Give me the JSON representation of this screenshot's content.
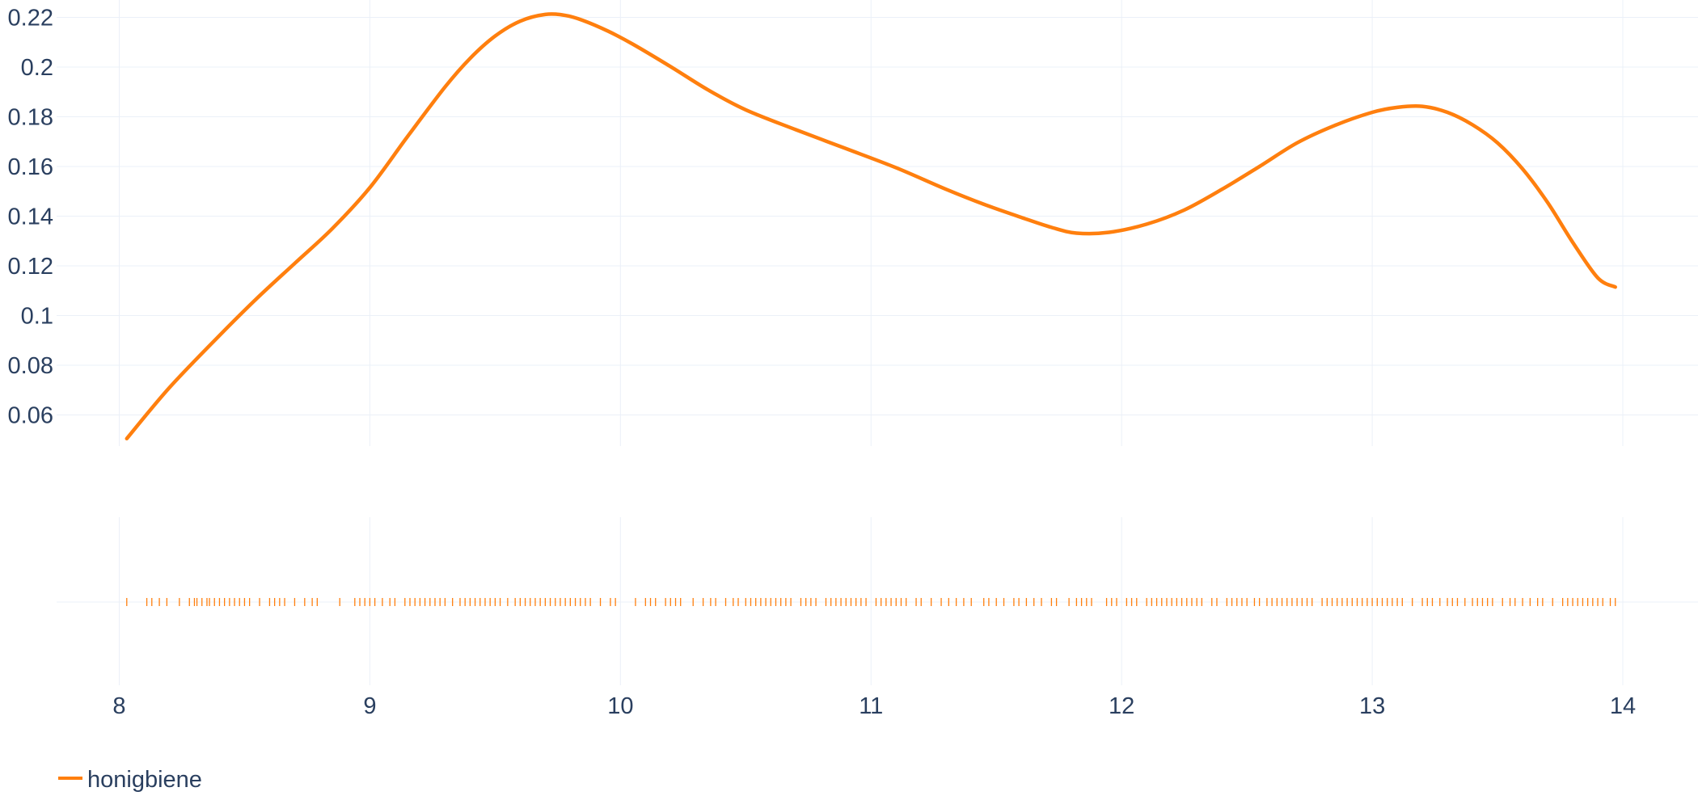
{
  "chart_data": {
    "type": "line",
    "subtype": "kde-distribution-with-rug",
    "title": "",
    "xlabel": "",
    "ylabel": "",
    "xlim": [
      7.75,
      14.3
    ],
    "ylim": [
      0.0475,
      0.227
    ],
    "x_ticks": [
      8,
      9,
      10,
      11,
      12,
      13,
      14
    ],
    "x_tick_labels": [
      "8",
      "9",
      "10",
      "11",
      "12",
      "13",
      "14"
    ],
    "y_ticks": [
      0.06,
      0.08,
      0.1,
      0.12,
      0.14,
      0.16,
      0.18,
      0.2,
      0.22
    ],
    "y_tick_labels": [
      "0.06",
      "0.08",
      "0.1",
      "0.12",
      "0.14",
      "0.16",
      "0.18",
      "0.2",
      "0.22"
    ],
    "grid": true,
    "legend_position": "bottom-left",
    "series": [
      {
        "name": "honigbiene",
        "color": "#ff7f0e",
        "x": [
          8.03,
          8.2,
          8.4,
          8.55,
          8.7,
          8.85,
          9.0,
          9.15,
          9.3,
          9.4,
          9.5,
          9.6,
          9.7,
          9.78,
          9.85,
          9.95,
          10.05,
          10.2,
          10.35,
          10.5,
          10.7,
          10.9,
          11.1,
          11.3,
          11.45,
          11.6,
          11.72,
          11.82,
          11.95,
          12.1,
          12.25,
          12.4,
          12.55,
          12.7,
          12.85,
          13.0,
          13.1,
          13.2,
          13.3,
          13.4,
          13.5,
          13.6,
          13.7,
          13.8,
          13.9,
          13.97
        ],
        "y": [
          0.0505,
          0.071,
          0.092,
          0.107,
          0.121,
          0.135,
          0.1515,
          0.172,
          0.192,
          0.2035,
          0.2125,
          0.2185,
          0.2212,
          0.2208,
          0.2188,
          0.2145,
          0.2092,
          0.2002,
          0.1908,
          0.1828,
          0.1748,
          0.1672,
          0.1595,
          0.1508,
          0.1448,
          0.1395,
          0.1355,
          0.1332,
          0.1335,
          0.1368,
          0.1425,
          0.1508,
          0.16,
          0.1695,
          0.1765,
          0.1818,
          0.1838,
          0.1842,
          0.1818,
          0.1768,
          0.1695,
          0.159,
          0.1455,
          0.1295,
          0.1152,
          0.1115
        ]
      }
    ],
    "rug": {
      "name": "honigbiene",
      "color": "#ff7f0e",
      "x": [
        8.03,
        8.11,
        8.13,
        8.16,
        8.19,
        8.24,
        8.28,
        8.3,
        8.31,
        8.33,
        8.35,
        8.36,
        8.38,
        8.4,
        8.42,
        8.44,
        8.46,
        8.48,
        8.5,
        8.52,
        8.56,
        8.6,
        8.62,
        8.64,
        8.66,
        8.7,
        8.74,
        8.77,
        8.79,
        8.88,
        8.94,
        8.96,
        8.98,
        9.0,
        9.02,
        9.05,
        9.08,
        9.1,
        9.14,
        9.16,
        9.18,
        9.2,
        9.22,
        9.24,
        9.26,
        9.28,
        9.3,
        9.33,
        9.36,
        9.38,
        9.4,
        9.42,
        9.44,
        9.46,
        9.48,
        9.5,
        9.52,
        9.55,
        9.58,
        9.6,
        9.62,
        9.64,
        9.66,
        9.68,
        9.7,
        9.72,
        9.74,
        9.76,
        9.78,
        9.8,
        9.82,
        9.84,
        9.86,
        9.88,
        9.92,
        9.96,
        9.98,
        10.06,
        10.1,
        10.12,
        10.14,
        10.18,
        10.2,
        10.22,
        10.24,
        10.29,
        10.33,
        10.36,
        10.38,
        10.42,
        10.45,
        10.47,
        10.5,
        10.52,
        10.54,
        10.56,
        10.58,
        10.6,
        10.62,
        10.64,
        10.66,
        10.68,
        10.72,
        10.74,
        10.76,
        10.78,
        10.82,
        10.84,
        10.86,
        10.88,
        10.9,
        10.92,
        10.94,
        10.96,
        10.98,
        11.02,
        11.04,
        11.06,
        11.08,
        11.1,
        11.12,
        11.14,
        11.18,
        11.2,
        11.24,
        11.28,
        11.31,
        11.34,
        11.37,
        11.4,
        11.45,
        11.47,
        11.5,
        11.53,
        11.57,
        11.59,
        11.62,
        11.65,
        11.68,
        11.72,
        11.74,
        11.79,
        11.82,
        11.84,
        11.86,
        11.88,
        11.94,
        11.96,
        11.98,
        12.02,
        12.04,
        12.06,
        12.1,
        12.12,
        12.14,
        12.16,
        12.18,
        12.2,
        12.22,
        12.24,
        12.26,
        12.28,
        12.3,
        12.32,
        12.36,
        12.38,
        12.42,
        12.44,
        12.46,
        12.48,
        12.5,
        12.53,
        12.55,
        12.58,
        12.6,
        12.62,
        12.64,
        12.66,
        12.68,
        12.7,
        12.72,
        12.74,
        12.76,
        12.8,
        12.82,
        12.84,
        12.86,
        12.88,
        12.9,
        12.92,
        12.94,
        12.96,
        12.98,
        13.0,
        13.02,
        13.04,
        13.06,
        13.08,
        13.1,
        13.12,
        13.16,
        13.2,
        13.22,
        13.24,
        13.27,
        13.3,
        13.32,
        13.34,
        13.37,
        13.4,
        13.42,
        13.44,
        13.46,
        13.48,
        13.52,
        13.55,
        13.57,
        13.6,
        13.63,
        13.66,
        13.68,
        13.72,
        13.76,
        13.78,
        13.8,
        13.82,
        13.84,
        13.86,
        13.88,
        13.9,
        13.92,
        13.95,
        13.97
      ]
    }
  }
}
